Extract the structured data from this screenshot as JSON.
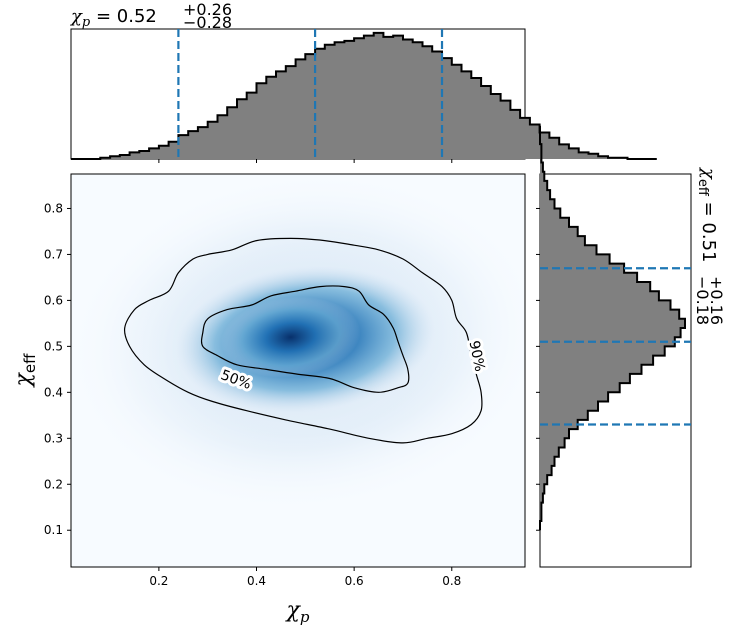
{
  "chart_data": {
    "type": "heatmap",
    "joint": {
      "xlabel": "χ",
      "xlabel_sub": "p",
      "ylabel": "χ",
      "ylabel_sub": "eff",
      "xlim": [
        0.02,
        0.95
      ],
      "ylim": [
        0.02,
        0.875
      ],
      "xticks": [
        0.2,
        0.4,
        0.6,
        0.8
      ],
      "xtick_labels": [
        "0.2",
        "0.4",
        "0.6",
        "0.8"
      ],
      "yticks": [
        0.1,
        0.2,
        0.3,
        0.4,
        0.5,
        0.6,
        0.7,
        0.8
      ],
      "ytick_labels": [
        "0.1",
        "0.2",
        "0.3",
        "0.4",
        "0.5",
        "0.6",
        "0.7",
        "0.8"
      ],
      "colormap": "Blues",
      "density_peak": [
        0.47,
        0.52
      ],
      "contours": [
        {
          "label": "50%",
          "points": [
            [
              0.29,
              0.53
            ],
            [
              0.3,
              0.56
            ],
            [
              0.34,
              0.58
            ],
            [
              0.39,
              0.59
            ],
            [
              0.43,
              0.61
            ],
            [
              0.48,
              0.62
            ],
            [
              0.53,
              0.63
            ],
            [
              0.58,
              0.63
            ],
            [
              0.61,
              0.62
            ],
            [
              0.63,
              0.59
            ],
            [
              0.66,
              0.57
            ],
            [
              0.68,
              0.54
            ],
            [
              0.69,
              0.51
            ],
            [
              0.7,
              0.48
            ],
            [
              0.71,
              0.45
            ],
            [
              0.71,
              0.42
            ],
            [
              0.69,
              0.41
            ],
            [
              0.65,
              0.4
            ],
            [
              0.6,
              0.41
            ],
            [
              0.55,
              0.43
            ],
            [
              0.48,
              0.44
            ],
            [
              0.42,
              0.45
            ],
            [
              0.36,
              0.46
            ],
            [
              0.32,
              0.48
            ],
            [
              0.29,
              0.5
            ]
          ]
        },
        {
          "label": "90%",
          "points": [
            [
              0.13,
              0.54
            ],
            [
              0.15,
              0.58
            ],
            [
              0.18,
              0.6
            ],
            [
              0.22,
              0.62
            ],
            [
              0.24,
              0.66
            ],
            [
              0.27,
              0.69
            ],
            [
              0.3,
              0.7
            ],
            [
              0.35,
              0.71
            ],
            [
              0.4,
              0.73
            ],
            [
              0.47,
              0.735
            ],
            [
              0.54,
              0.73
            ],
            [
              0.6,
              0.72
            ],
            [
              0.65,
              0.71
            ],
            [
              0.7,
              0.69
            ],
            [
              0.74,
              0.66
            ],
            [
              0.78,
              0.63
            ],
            [
              0.8,
              0.6
            ],
            [
              0.81,
              0.56
            ],
            [
              0.83,
              0.53
            ],
            [
              0.84,
              0.48
            ],
            [
              0.85,
              0.44
            ],
            [
              0.86,
              0.4
            ],
            [
              0.86,
              0.36
            ],
            [
              0.84,
              0.33
            ],
            [
              0.8,
              0.31
            ],
            [
              0.75,
              0.3
            ],
            [
              0.7,
              0.29
            ],
            [
              0.63,
              0.3
            ],
            [
              0.55,
              0.32
            ],
            [
              0.46,
              0.34
            ],
            [
              0.38,
              0.36
            ],
            [
              0.31,
              0.38
            ],
            [
              0.26,
              0.4
            ],
            [
              0.21,
              0.43
            ],
            [
              0.17,
              0.46
            ],
            [
              0.14,
              0.5
            ]
          ]
        }
      ]
    },
    "top_marginal": {
      "type": "histogram",
      "annotation": {
        "symbol": "χ",
        "sub": "p",
        "median": "0.52",
        "upper": "+0.26",
        "lower": "−0.28"
      },
      "bin_edges_start": 0.02,
      "bin_width": 0.02,
      "density": [
        0.0,
        0.0,
        0.0,
        0.01,
        0.02,
        0.03,
        0.05,
        0.06,
        0.08,
        0.1,
        0.13,
        0.18,
        0.21,
        0.24,
        0.28,
        0.33,
        0.39,
        0.45,
        0.5,
        0.57,
        0.62,
        0.66,
        0.7,
        0.75,
        0.79,
        0.83,
        0.86,
        0.88,
        0.89,
        0.91,
        0.93,
        0.95,
        0.92,
        0.93,
        0.9,
        0.88,
        0.85,
        0.81,
        0.76,
        0.71,
        0.66,
        0.61,
        0.55,
        0.49,
        0.44,
        0.37,
        0.31,
        0.26,
        0.2,
        0.16,
        0.11,
        0.08,
        0.05,
        0.04,
        0.02,
        0.01,
        0.01,
        0.0,
        0.0,
        0.0
      ],
      "quantile_lines": [
        0.24,
        0.52,
        0.78
      ],
      "line_color": "#1f77b4"
    },
    "right_marginal": {
      "type": "histogram",
      "annotation": {
        "symbol": "χ",
        "sub": "eff",
        "median": "0.51",
        "upper": "+0.16",
        "lower": "−0.18"
      },
      "bin_edges_start": 0.1,
      "bin_width": 0.02,
      "density": [
        0.0,
        0.01,
        0.01,
        0.02,
        0.03,
        0.05,
        0.08,
        0.1,
        0.13,
        0.17,
        0.2,
        0.26,
        0.33,
        0.4,
        0.47,
        0.55,
        0.62,
        0.7,
        0.78,
        0.86,
        0.93,
        0.97,
        1.0,
        0.96,
        0.9,
        0.82,
        0.76,
        0.67,
        0.58,
        0.48,
        0.39,
        0.31,
        0.26,
        0.2,
        0.14,
        0.1,
        0.07,
        0.05,
        0.03,
        0.02,
        0.01,
        0.01,
        0.0,
        0.0
      ],
      "quantile_lines": [
        0.33,
        0.51,
        0.67
      ],
      "line_color": "#1f77b4"
    }
  }
}
